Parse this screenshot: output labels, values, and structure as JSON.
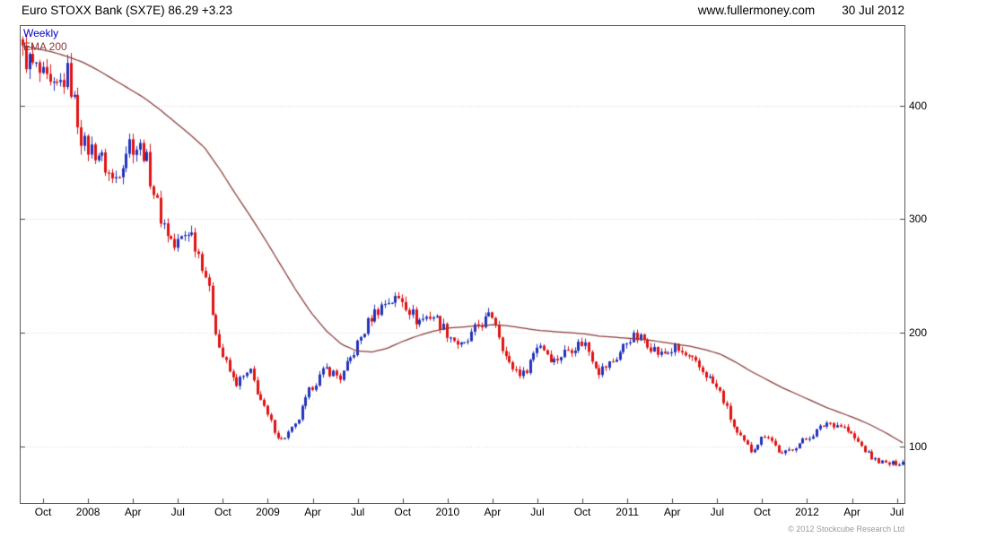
{
  "header": {
    "title": "Euro STOXX Bank (SX7E) 86.29 +3.23",
    "website": "www.fullermoney.com",
    "date": "30 Jul 2012"
  },
  "legend": {
    "timeframe": "Weekly",
    "overlay": "EMA 200"
  },
  "footer": {
    "copyright": "© 2012 Stockcube Research Ltd"
  },
  "chart_data": {
    "type": "candlestick",
    "title": "Euro STOXX Bank (SX7E)",
    "last_price": 86.29,
    "change": "+3.23",
    "timeframe": "weekly",
    "overlay": "EMA 200",
    "weeks": 256,
    "value_range": [
      50,
      470
    ],
    "y_ticks": [
      400,
      300,
      200,
      100
    ],
    "x_ticks": [
      {
        "label": "Oct",
        "m": 1
      },
      {
        "label": "2008",
        "m": 4
      },
      {
        "label": "Apr",
        "m": 7
      },
      {
        "label": "Jul",
        "m": 10
      },
      {
        "label": "Oct",
        "m": 13
      },
      {
        "label": "2009",
        "m": 16
      },
      {
        "label": "Apr",
        "m": 19
      },
      {
        "label": "Jul",
        "m": 22
      },
      {
        "label": "Oct",
        "m": 25
      },
      {
        "label": "2010",
        "m": 28
      },
      {
        "label": "Apr",
        "m": 31
      },
      {
        "label": "Jul",
        "m": 34
      },
      {
        "label": "Oct",
        "m": 37
      },
      {
        "label": "2011",
        "m": 40
      },
      {
        "label": "Apr",
        "m": 43
      },
      {
        "label": "Jul",
        "m": 46
      },
      {
        "label": "Oct",
        "m": 49
      },
      {
        "label": "2012",
        "m": 52
      },
      {
        "label": "Apr",
        "m": 55
      },
      {
        "label": "Jul",
        "m": 58
      }
    ],
    "months_start": "Sep 2007",
    "months_end": "Jul 2012",
    "monthly_closes": [
      445,
      430,
      410,
      428,
      365,
      358,
      332,
      368,
      360,
      305,
      275,
      292,
      255,
      185,
      155,
      165,
      130,
      105,
      118,
      152,
      168,
      160,
      188,
      215,
      228,
      230,
      210,
      216,
      200,
      186,
      206,
      216,
      172,
      163,
      192,
      175,
      186,
      192,
      166,
      176,
      196,
      194,
      180,
      186,
      176,
      164,
      146,
      112,
      96,
      112,
      92,
      101,
      110,
      121,
      118,
      104,
      89,
      84,
      86.29
    ],
    "ema200_monthly": [
      452,
      450,
      447,
      443,
      438,
      431,
      423,
      415,
      407,
      397,
      386,
      375,
      363,
      344,
      323,
      303,
      282,
      260,
      238,
      218,
      202,
      190,
      184,
      183,
      186,
      192,
      197,
      201,
      204,
      205,
      206,
      207,
      206,
      204,
      202,
      201,
      200,
      199,
      197,
      196,
      195,
      194,
      192,
      190,
      188,
      185,
      181,
      174,
      166,
      159,
      152,
      146,
      140,
      134,
      129,
      124,
      118,
      111,
      103
    ],
    "colors": {
      "up": "#2233bb",
      "down": "#e01212",
      "ema": "#8b3a3a",
      "grid": "#d4d4d4",
      "frame": "#5a5a5a"
    }
  }
}
